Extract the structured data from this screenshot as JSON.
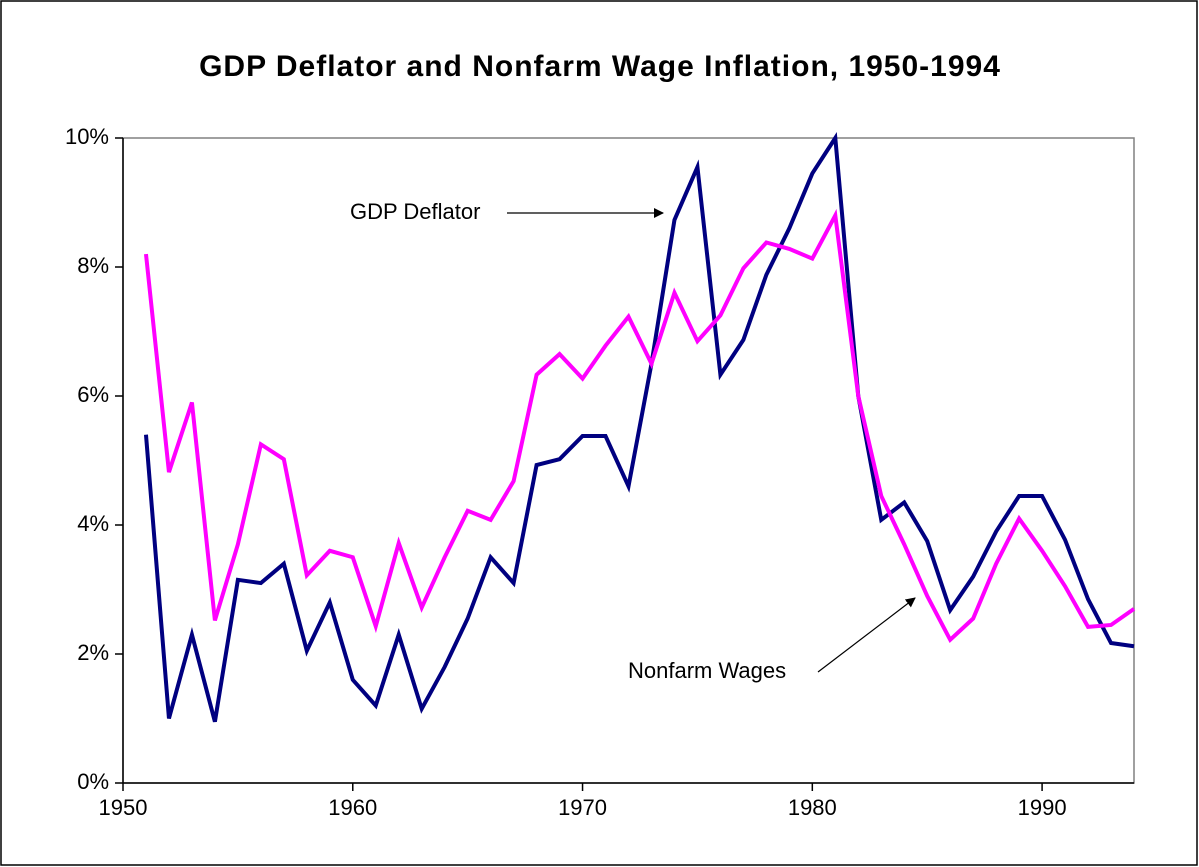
{
  "chart_data": {
    "type": "line",
    "title": "GDP Deflator and Nonfarm Wage Inflation, 1950-1994",
    "x": [
      1951,
      1952,
      1953,
      1954,
      1955,
      1956,
      1957,
      1958,
      1959,
      1960,
      1961,
      1962,
      1963,
      1964,
      1965,
      1966,
      1967,
      1968,
      1969,
      1970,
      1971,
      1972,
      1973,
      1974,
      1975,
      1976,
      1977,
      1978,
      1979,
      1980,
      1981,
      1982,
      1983,
      1984,
      1985,
      1986,
      1987,
      1988,
      1989,
      1990,
      1991,
      1992,
      1993,
      1994
    ],
    "series": [
      {
        "name": "GDP Deflator",
        "color": "#000080",
        "values": [
          5.4,
          1.0,
          2.3,
          0.95,
          3.15,
          3.1,
          3.4,
          2.05,
          2.8,
          1.6,
          1.2,
          2.3,
          1.15,
          1.8,
          2.55,
          3.5,
          3.1,
          4.93,
          5.02,
          5.38,
          5.38,
          4.6,
          6.5,
          8.73,
          9.55,
          6.33,
          6.87,
          7.88,
          8.6,
          9.45,
          10.0,
          6.0,
          4.08,
          4.35,
          3.75,
          2.68,
          3.2,
          3.9,
          4.45,
          4.45,
          3.77,
          2.85,
          2.17,
          2.12
        ]
      },
      {
        "name": "Nonfarm Wages",
        "color": "#ff00ff",
        "values": [
          8.2,
          4.82,
          5.9,
          2.52,
          3.7,
          5.25,
          5.02,
          3.22,
          3.6,
          3.5,
          2.43,
          3.72,
          2.72,
          3.5,
          4.22,
          4.08,
          4.68,
          6.33,
          6.65,
          6.27,
          6.78,
          7.23,
          6.5,
          7.6,
          6.85,
          7.25,
          7.98,
          8.38,
          8.28,
          8.13,
          8.8,
          6.0,
          4.45,
          3.7,
          2.9,
          2.22,
          2.55,
          3.4,
          4.1,
          3.6,
          3.05,
          2.42,
          2.45,
          2.7
        ]
      }
    ],
    "xlim": [
      1950,
      1994
    ],
    "xticks": [
      1950,
      1960,
      1970,
      1980,
      1990
    ],
    "ylim": [
      0,
      10
    ],
    "yticks": [
      {
        "value": 0,
        "label": "0%"
      },
      {
        "value": 2,
        "label": "2%"
      },
      {
        "value": 4,
        "label": "4%"
      },
      {
        "value": 6,
        "label": "6%"
      },
      {
        "value": 8,
        "label": "8%"
      },
      {
        "value": 10,
        "label": "10%"
      }
    ]
  }
}
